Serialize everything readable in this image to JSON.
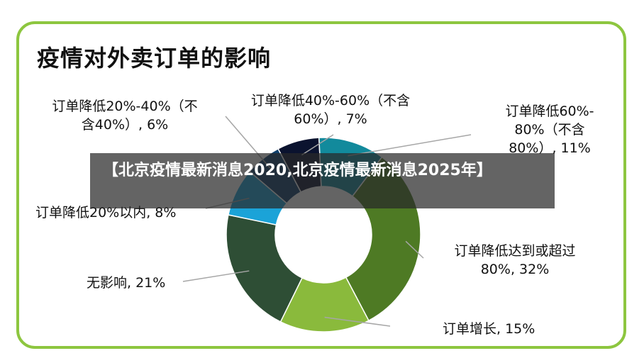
{
  "banner": {
    "text": "【北京疫情最新消息2020,北京疫情最新消息2025年】"
  },
  "chart_data": {
    "type": "pie",
    "title": "疫情对外卖订单的影响",
    "slices": [
      {
        "label_lines": [
          "订单降低达到或超过",
          "80%, 32%"
        ],
        "value": 32,
        "color": "#4e7a24"
      },
      {
        "label_lines": [
          "订单增长, 15%"
        ],
        "value": 15,
        "color": "#8aba3c"
      },
      {
        "label_lines": [
          "无影响, 21%"
        ],
        "value": 21,
        "color": "#2e4e35"
      },
      {
        "label_lines": [
          "订单降低20%以内, 8%"
        ],
        "value": 8,
        "color": "#1ba3d8"
      },
      {
        "label_lines": [
          "订单降低20%-40%（不",
          "含40%）, 6%"
        ],
        "value": 6,
        "color": "#0f3f6b"
      },
      {
        "label_lines": [
          "订单降低40%-60%（不含",
          "60%）, 7%"
        ],
        "value": 7,
        "color": "#0b132f"
      },
      {
        "label_lines": [
          "订单降低60%-",
          "80%（不含",
          "80%）, 11%"
        ],
        "value": 11,
        "color": "#128a9c"
      }
    ],
    "legend": "none"
  }
}
